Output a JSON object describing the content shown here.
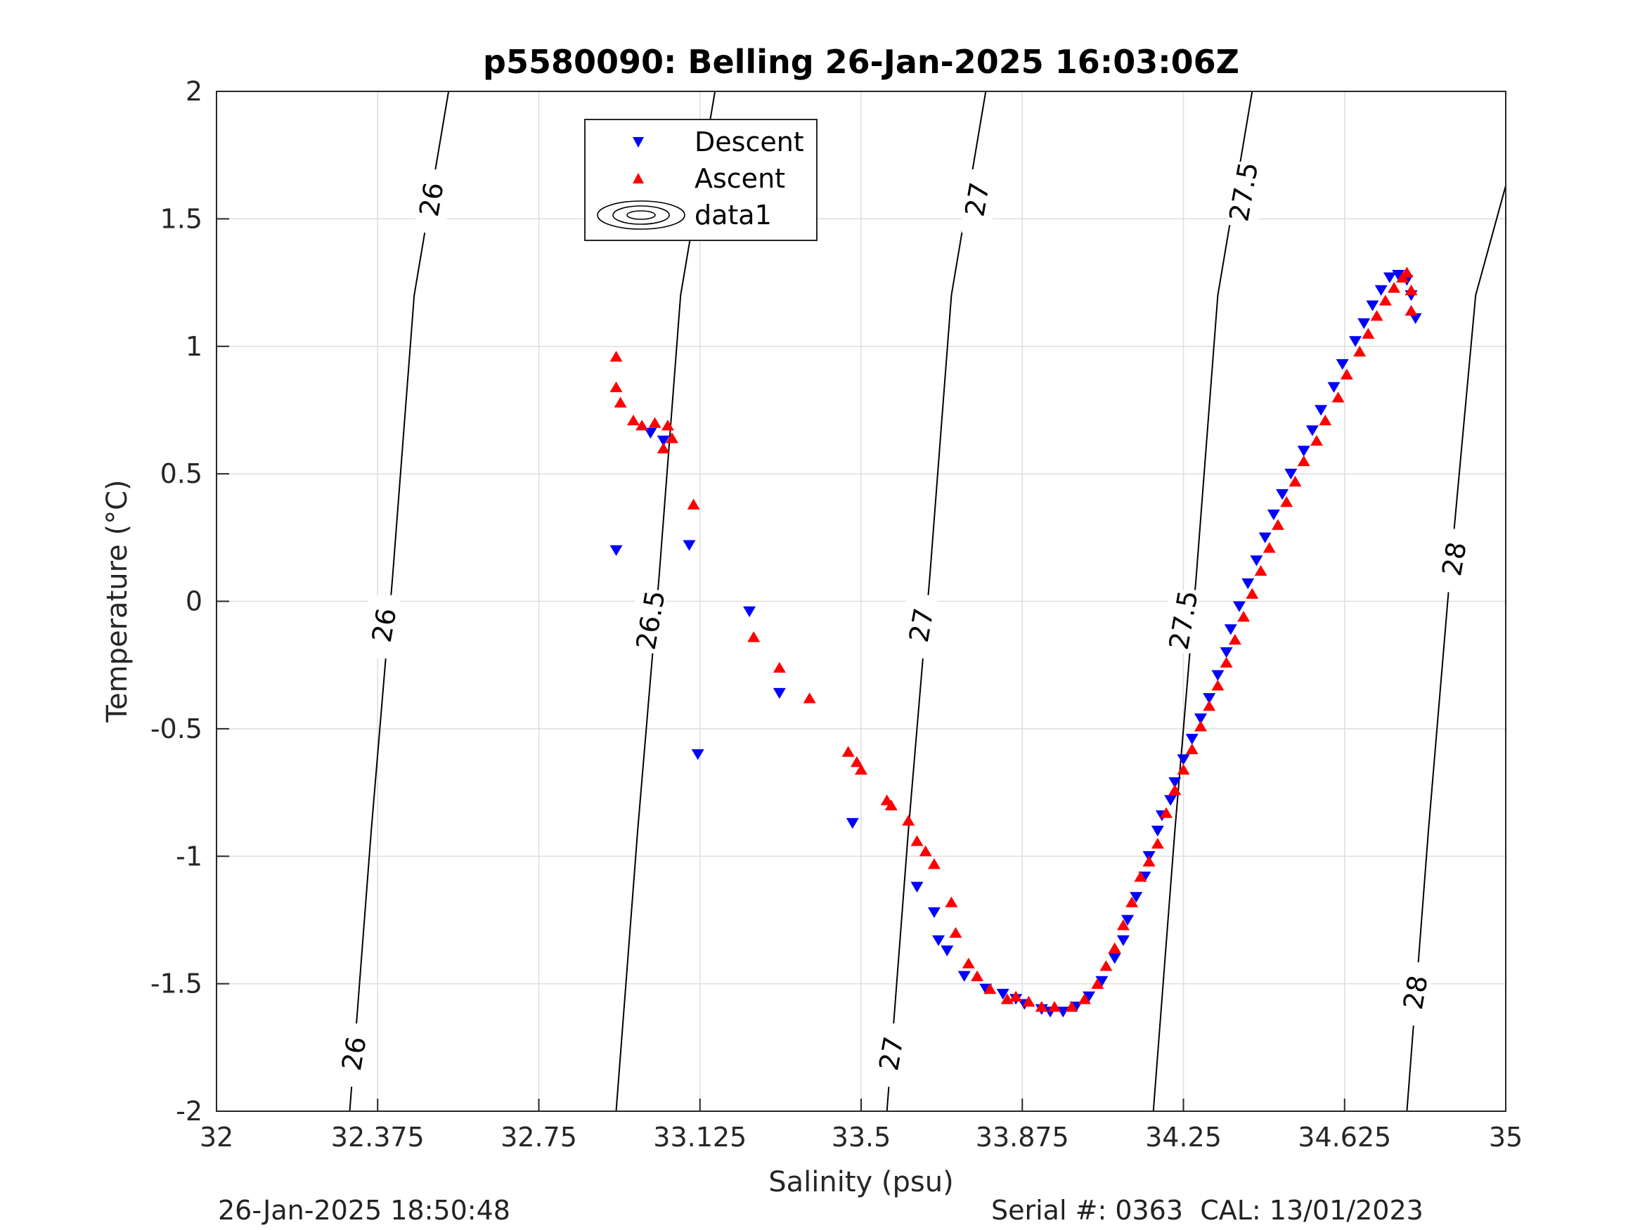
{
  "chart_data": {
    "type": "scatter",
    "title": "p5580090: Belling 26-Jan-2025 16:03:06Z",
    "xlabel": "Salinity (psu)",
    "ylabel": "Temperature (°C)",
    "xlim": [
      32,
      35
    ],
    "ylim": [
      -2,
      2
    ],
    "x_ticks": [
      "32",
      "32.375",
      "32.75",
      "33.125",
      "33.5",
      "33.875",
      "34.25",
      "34.625",
      "35"
    ],
    "y_ticks": [
      "-2",
      "-1.5",
      "-1",
      "-0.5",
      "0",
      "0.5",
      "1",
      "1.5",
      "2"
    ],
    "grid": true,
    "legend_position": "top-center",
    "legend": [
      {
        "label": "Descent",
        "marker": "down-triangle",
        "color": "#0000ff"
      },
      {
        "label": "Ascent",
        "marker": "up-triangle",
        "color": "#ff0000"
      },
      {
        "label": "data1",
        "marker": "contour",
        "color": "#000000"
      }
    ],
    "contours": [
      {
        "label": "26",
        "points": [
          [
            32.31,
            -2.0
          ],
          [
            32.36,
            -0.9
          ],
          [
            32.41,
            0.1
          ],
          [
            32.46,
            1.2
          ],
          [
            32.54,
            2.0
          ]
        ]
      },
      {
        "label": "26.5",
        "points": [
          [
            32.93,
            -2.0
          ],
          [
            32.98,
            -0.9
          ],
          [
            33.03,
            0.1
          ],
          [
            33.08,
            1.2
          ],
          [
            33.16,
            2.0
          ]
        ]
      },
      {
        "label": "27",
        "points": [
          [
            33.56,
            -2.0
          ],
          [
            33.61,
            -0.9
          ],
          [
            33.66,
            0.1
          ],
          [
            33.71,
            1.2
          ],
          [
            33.79,
            2.0
          ]
        ]
      },
      {
        "label": "27.5",
        "points": [
          [
            34.18,
            -2.0
          ],
          [
            34.23,
            -0.9
          ],
          [
            34.28,
            0.1
          ],
          [
            34.33,
            1.2
          ],
          [
            34.41,
            2.0
          ]
        ]
      },
      {
        "label": "28",
        "points": [
          [
            34.77,
            -2.0
          ],
          [
            34.82,
            -0.9
          ],
          [
            34.87,
            0.1
          ],
          [
            34.93,
            1.2
          ],
          [
            35.0,
            1.63
          ]
        ]
      }
    ],
    "contour_labels": [
      {
        "text": "26",
        "x": 32.5,
        "y": 1.57
      },
      {
        "text": "26",
        "x": 32.39,
        "y": -0.1
      },
      {
        "text": "26",
        "x": 32.32,
        "y": -1.78
      },
      {
        "text": "26.5",
        "x": 33.14,
        "y": 1.6
      },
      {
        "text": "26.5",
        "x": 33.01,
        "y": -0.08
      },
      {
        "text": "27",
        "x": 33.77,
        "y": 1.57
      },
      {
        "text": "27",
        "x": 33.64,
        "y": -0.1
      },
      {
        "text": "27",
        "x": 33.57,
        "y": -1.78
      },
      {
        "text": "27.5",
        "x": 34.39,
        "y": 1.6
      },
      {
        "text": "27.5",
        "x": 34.25,
        "y": -0.08
      },
      {
        "text": "28",
        "x": 34.88,
        "y": 0.16
      },
      {
        "text": "28",
        "x": 34.79,
        "y": -1.54
      }
    ],
    "series": [
      {
        "name": "Descent",
        "marker": "down-triangle",
        "color": "#0000ff",
        "points": [
          [
            32.93,
            0.2
          ],
          [
            33.01,
            0.66
          ],
          [
            33.04,
            0.63
          ],
          [
            33.1,
            0.22
          ],
          [
            33.12,
            -0.6
          ],
          [
            33.24,
            -0.04
          ],
          [
            33.31,
            -0.36
          ],
          [
            33.48,
            -0.87
          ],
          [
            33.63,
            -1.12
          ],
          [
            33.67,
            -1.22
          ],
          [
            33.68,
            -1.33
          ],
          [
            33.7,
            -1.37
          ],
          [
            33.74,
            -1.47
          ],
          [
            33.79,
            -1.52
          ],
          [
            33.83,
            -1.54
          ],
          [
            33.86,
            -1.56
          ],
          [
            33.88,
            -1.58
          ],
          [
            33.92,
            -1.6
          ],
          [
            33.94,
            -1.61
          ],
          [
            33.97,
            -1.61
          ],
          [
            34.0,
            -1.59
          ],
          [
            34.03,
            -1.55
          ],
          [
            34.06,
            -1.49
          ],
          [
            34.09,
            -1.4
          ],
          [
            34.11,
            -1.33
          ],
          [
            34.12,
            -1.25
          ],
          [
            34.14,
            -1.16
          ],
          [
            34.16,
            -1.08
          ],
          [
            34.17,
            -1.0
          ],
          [
            34.19,
            -0.9
          ],
          [
            34.2,
            -0.84
          ],
          [
            34.22,
            -0.78
          ],
          [
            34.23,
            -0.71
          ],
          [
            34.25,
            -0.62
          ],
          [
            34.27,
            -0.54
          ],
          [
            34.29,
            -0.46
          ],
          [
            34.31,
            -0.38
          ],
          [
            34.33,
            -0.29
          ],
          [
            34.35,
            -0.2
          ],
          [
            34.36,
            -0.11
          ],
          [
            34.38,
            -0.02
          ],
          [
            34.4,
            0.07
          ],
          [
            34.42,
            0.16
          ],
          [
            34.44,
            0.25
          ],
          [
            34.46,
            0.34
          ],
          [
            34.48,
            0.42
          ],
          [
            34.5,
            0.5
          ],
          [
            34.53,
            0.59
          ],
          [
            34.55,
            0.67
          ],
          [
            34.57,
            0.75
          ],
          [
            34.6,
            0.84
          ],
          [
            34.62,
            0.93
          ],
          [
            34.65,
            1.02
          ],
          [
            34.67,
            1.09
          ],
          [
            34.69,
            1.16
          ],
          [
            34.71,
            1.22
          ],
          [
            34.73,
            1.27
          ],
          [
            34.75,
            1.28
          ],
          [
            34.77,
            1.26
          ],
          [
            34.78,
            1.2
          ],
          [
            34.79,
            1.11
          ]
        ]
      },
      {
        "name": "Ascent",
        "marker": "up-triangle",
        "color": "#ff0000",
        "points": [
          [
            32.93,
            0.96
          ],
          [
            32.93,
            0.84
          ],
          [
            32.94,
            0.78
          ],
          [
            32.97,
            0.71
          ],
          [
            32.99,
            0.69
          ],
          [
            33.02,
            0.7
          ],
          [
            33.04,
            0.6
          ],
          [
            33.05,
            0.69
          ],
          [
            33.06,
            0.64
          ],
          [
            33.11,
            0.38
          ],
          [
            33.25,
            -0.14
          ],
          [
            33.31,
            -0.26
          ],
          [
            33.38,
            -0.38
          ],
          [
            33.47,
            -0.59
          ],
          [
            33.49,
            -0.63
          ],
          [
            33.5,
            -0.66
          ],
          [
            33.56,
            -0.78
          ],
          [
            33.57,
            -0.8
          ],
          [
            33.61,
            -0.86
          ],
          [
            33.63,
            -0.94
          ],
          [
            33.65,
            -0.98
          ],
          [
            33.67,
            -1.03
          ],
          [
            33.71,
            -1.18
          ],
          [
            33.72,
            -1.3
          ],
          [
            33.75,
            -1.42
          ],
          [
            33.77,
            -1.47
          ],
          [
            33.8,
            -1.52
          ],
          [
            33.84,
            -1.56
          ],
          [
            33.86,
            -1.55
          ],
          [
            33.89,
            -1.57
          ],
          [
            33.92,
            -1.59
          ],
          [
            33.95,
            -1.59
          ],
          [
            33.99,
            -1.59
          ],
          [
            34.02,
            -1.56
          ],
          [
            34.05,
            -1.5
          ],
          [
            34.07,
            -1.43
          ],
          [
            34.09,
            -1.36
          ],
          [
            34.11,
            -1.27
          ],
          [
            34.13,
            -1.18
          ],
          [
            34.15,
            -1.08
          ],
          [
            34.17,
            -1.02
          ],
          [
            34.19,
            -0.95
          ],
          [
            34.21,
            -0.83
          ],
          [
            34.23,
            -0.74
          ],
          [
            34.25,
            -0.66
          ],
          [
            34.27,
            -0.58
          ],
          [
            34.29,
            -0.49
          ],
          [
            34.31,
            -0.41
          ],
          [
            34.33,
            -0.33
          ],
          [
            34.35,
            -0.24
          ],
          [
            34.37,
            -0.15
          ],
          [
            34.39,
            -0.06
          ],
          [
            34.41,
            0.03
          ],
          [
            34.43,
            0.12
          ],
          [
            34.45,
            0.21
          ],
          [
            34.47,
            0.3
          ],
          [
            34.49,
            0.39
          ],
          [
            34.51,
            0.47
          ],
          [
            34.53,
            0.55
          ],
          [
            34.56,
            0.63
          ],
          [
            34.58,
            0.71
          ],
          [
            34.61,
            0.8
          ],
          [
            34.63,
            0.89
          ],
          [
            34.66,
            0.98
          ],
          [
            34.68,
            1.05
          ],
          [
            34.7,
            1.12
          ],
          [
            34.72,
            1.18
          ],
          [
            34.74,
            1.23
          ],
          [
            34.76,
            1.27
          ],
          [
            34.77,
            1.29
          ],
          [
            34.78,
            1.22
          ],
          [
            34.78,
            1.14
          ]
        ]
      }
    ]
  },
  "footer": {
    "timestamp": "26-Jan-2025 18:50:48",
    "serial": "Serial #: 0363  CAL: 13/01/2023"
  }
}
